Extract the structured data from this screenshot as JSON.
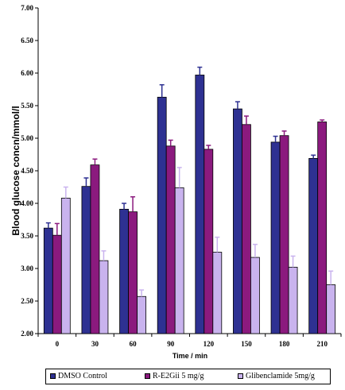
{
  "chart_data": {
    "type": "bar",
    "title": "",
    "xlabel": "Time / min",
    "ylabel": "Blood glucose concn/mmol/l",
    "categories": [
      "0",
      "30",
      "60",
      "90",
      "120",
      "150",
      "180",
      "210"
    ],
    "ylim": [
      2.0,
      7.0
    ],
    "yticks": [
      "2.00",
      "2.50",
      "3.00",
      "3.50",
      "4.00",
      "4.50",
      "5.00",
      "5.50",
      "6.00",
      "6.50",
      "7.00"
    ],
    "grid": false,
    "legend_position": "bottom",
    "error_bars": "upper",
    "series": [
      {
        "name": "DMSO Control",
        "color": "#2e3192",
        "values": [
          3.62,
          4.26,
          3.91,
          5.63,
          5.97,
          5.45,
          4.94,
          4.69
        ],
        "errors": [
          0.08,
          0.13,
          0.09,
          0.19,
          0.12,
          0.11,
          0.09,
          0.05
        ]
      },
      {
        "name": "R-E2Gii 5 mg/g",
        "color": "#8b1a7e",
        "values": [
          3.51,
          4.59,
          3.87,
          4.88,
          4.83,
          5.21,
          5.04,
          5.25
        ],
        "errors": [
          0.18,
          0.09,
          0.23,
          0.09,
          0.06,
          0.13,
          0.07,
          0.03
        ]
      },
      {
        "name": "Glibenclamide 5mg/g",
        "color": "#c9b3ee",
        "values": [
          4.08,
          3.12,
          2.57,
          4.24,
          3.25,
          3.17,
          3.02,
          2.75
        ],
        "errors": [
          0.17,
          0.15,
          0.1,
          0.31,
          0.23,
          0.2,
          0.17,
          0.21
        ]
      }
    ]
  }
}
